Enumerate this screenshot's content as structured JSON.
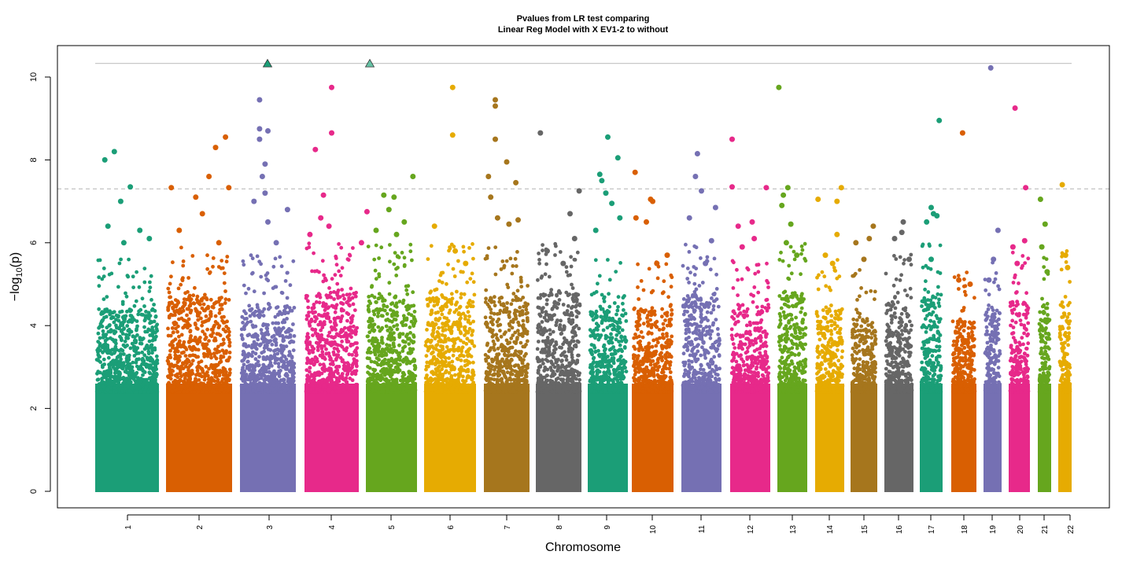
{
  "chart_data": {
    "type": "scatter",
    "title_line1": "Pvalues from LR test comparing",
    "title_line2": "Linear Reg Model with X EV1-2 to without",
    "xlabel": "Chromosome",
    "ylabel_prefix": "−log",
    "ylabel_sub": "10",
    "ylabel_suffix": "(p)",
    "ylim": [
      0,
      10.6
    ],
    "yticks": [
      "0",
      "2",
      "4",
      "6",
      "8",
      "10"
    ],
    "significance_threshold": 7.3,
    "max_line": 10.33,
    "palette": [
      "#1b9e77",
      "#d95f02",
      "#7570b3",
      "#e7298a",
      "#66a61e",
      "#e6ab02",
      "#a6761d",
      "#666666"
    ],
    "chromosomes": [
      {
        "label": "1",
        "color": "#1b9e77",
        "band_top": 4.4,
        "peaks": [
          [
            0.15,
            8.0
          ],
          [
            0.3,
            8.2
          ],
          [
            0.55,
            7.35
          ],
          [
            0.4,
            7.0
          ],
          [
            0.2,
            6.4
          ],
          [
            0.7,
            6.3
          ],
          [
            0.85,
            6.1
          ],
          [
            0.45,
            6.0
          ]
        ]
      },
      {
        "label": "2",
        "color": "#d95f02",
        "band_top": 4.7,
        "peaks": [
          [
            0.08,
            7.33
          ],
          [
            0.75,
            8.3
          ],
          [
            0.9,
            8.55
          ],
          [
            0.65,
            7.6
          ],
          [
            0.45,
            7.1
          ],
          [
            0.95,
            7.33
          ],
          [
            0.55,
            6.7
          ],
          [
            0.2,
            6.3
          ],
          [
            0.8,
            6.0
          ]
        ]
      },
      {
        "label": "3",
        "color": "#7570b3",
        "band_top": 4.5,
        "peaks": [
          [
            0.35,
            9.45
          ],
          [
            0.35,
            8.75
          ],
          [
            0.35,
            8.5
          ],
          [
            0.5,
            8.7
          ],
          [
            0.45,
            7.9
          ],
          [
            0.4,
            7.6
          ],
          [
            0.45,
            7.2
          ],
          [
            0.25,
            7.0
          ],
          [
            0.85,
            6.8
          ],
          [
            0.5,
            6.5
          ],
          [
            0.65,
            6.0
          ]
        ]
      },
      {
        "label": "4",
        "color": "#e7298a",
        "band_top": 4.8,
        "peaks": [
          [
            0.5,
            9.75
          ],
          [
            0.5,
            8.65
          ],
          [
            0.2,
            8.25
          ],
          [
            0.35,
            7.15
          ],
          [
            0.1,
            6.2
          ],
          [
            0.3,
            6.6
          ],
          [
            0.45,
            6.4
          ],
          [
            1.15,
            6.75
          ],
          [
            1.05,
            6.0
          ]
        ]
      },
      {
        "label": "5",
        "color": "#66a61e",
        "band_top": 4.8,
        "peaks": [
          [
            0.92,
            7.6
          ],
          [
            0.55,
            7.1
          ],
          [
            0.35,
            7.15
          ],
          [
            0.45,
            6.8
          ],
          [
            0.75,
            6.5
          ],
          [
            0.2,
            6.3
          ],
          [
            0.6,
            6.2
          ]
        ]
      },
      {
        "label": "6",
        "color": "#e6ab02",
        "band_top": 4.8,
        "peaks": [
          [
            0.55,
            9.75
          ],
          [
            0.55,
            8.6
          ],
          [
            0.2,
            6.4
          ],
          [
            0.6,
            5.8
          ],
          [
            0.8,
            5.5
          ]
        ]
      },
      {
        "label": "7",
        "color": "#a6761d",
        "band_top": 4.7,
        "peaks": [
          [
            0.25,
            9.45
          ],
          [
            0.25,
            9.3
          ],
          [
            0.25,
            8.5
          ],
          [
            0.5,
            7.95
          ],
          [
            0.7,
            7.45
          ],
          [
            0.1,
            7.6
          ],
          [
            0.15,
            7.1
          ],
          [
            0.3,
            6.6
          ],
          [
            0.55,
            6.45
          ],
          [
            0.75,
            6.55
          ]
        ]
      },
      {
        "label": "8",
        "color": "#666666",
        "band_top": 4.8,
        "peaks": [
          [
            0.1,
            8.65
          ],
          [
            0.95,
            7.25
          ],
          [
            0.75,
            6.7
          ],
          [
            0.85,
            6.1
          ],
          [
            0.25,
            5.8
          ],
          [
            0.6,
            5.5
          ]
        ]
      },
      {
        "label": "9",
        "color": "#1b9e77",
        "band_top": 4.4,
        "peaks": [
          [
            0.5,
            8.55
          ],
          [
            0.75,
            8.05
          ],
          [
            0.3,
            7.65
          ],
          [
            0.35,
            7.5
          ],
          [
            0.45,
            7.2
          ],
          [
            0.6,
            6.95
          ],
          [
            0.2,
            6.3
          ],
          [
            0.8,
            6.6
          ]
        ]
      },
      {
        "label": "10",
        "color": "#d95f02",
        "band_top": 4.4,
        "peaks": [
          [
            0.08,
            7.7
          ],
          [
            0.45,
            7.05
          ],
          [
            0.5,
            7.0
          ],
          [
            0.35,
            6.5
          ],
          [
            0.1,
            6.6
          ],
          [
            0.85,
            5.7
          ],
          [
            0.6,
            5.5
          ]
        ]
      },
      {
        "label": "11",
        "color": "#7570b3",
        "band_top": 4.8,
        "peaks": [
          [
            0.4,
            8.15
          ],
          [
            0.35,
            7.6
          ],
          [
            0.5,
            7.25
          ],
          [
            0.85,
            6.85
          ],
          [
            0.2,
            6.6
          ],
          [
            0.75,
            6.05
          ],
          [
            0.6,
            5.5
          ]
        ]
      },
      {
        "label": "12",
        "color": "#e7298a",
        "band_top": 4.5,
        "peaks": [
          [
            0.05,
            8.5
          ],
          [
            0.05,
            7.35
          ],
          [
            0.9,
            7.33
          ],
          [
            0.2,
            6.4
          ],
          [
            0.55,
            6.5
          ],
          [
            0.6,
            6.1
          ],
          [
            0.3,
            5.9
          ]
        ]
      },
      {
        "label": "13",
        "color": "#66a61e",
        "band_top": 4.8,
        "peaks": [
          [
            0.05,
            9.75
          ],
          [
            0.2,
            7.15
          ],
          [
            0.35,
            7.33
          ],
          [
            0.15,
            6.9
          ],
          [
            0.45,
            6.45
          ],
          [
            0.3,
            6.0
          ],
          [
            0.65,
            5.7
          ]
        ]
      },
      {
        "label": "14",
        "color": "#e6ab02",
        "band_top": 4.4,
        "peaks": [
          [
            0.1,
            7.05
          ],
          [
            0.75,
            7.0
          ],
          [
            0.9,
            7.33
          ],
          [
            0.75,
            6.2
          ],
          [
            0.35,
            5.7
          ],
          [
            0.6,
            5.5
          ]
        ]
      },
      {
        "label": "15",
        "color": "#a6761d",
        "band_top": 4.2,
        "peaks": [
          [
            0.2,
            6.0
          ],
          [
            0.7,
            6.1
          ],
          [
            0.85,
            6.4
          ],
          [
            0.5,
            5.6
          ]
        ]
      },
      {
        "label": "16",
        "color": "#666666",
        "band_top": 4.6,
        "peaks": [
          [
            0.65,
            6.5
          ],
          [
            0.6,
            6.25
          ],
          [
            0.35,
            6.1
          ],
          [
            0.85,
            5.6
          ]
        ]
      },
      {
        "label": "17",
        "color": "#1b9e77",
        "band_top": 4.8,
        "peaks": [
          [
            0.85,
            8.95
          ],
          [
            0.5,
            6.85
          ],
          [
            0.75,
            6.65
          ],
          [
            0.3,
            6.5
          ],
          [
            0.6,
            6.7
          ],
          [
            0.5,
            5.6
          ]
        ]
      },
      {
        "label": "18",
        "color": "#d95f02",
        "band_top": 4.2,
        "peaks": [
          [
            0.45,
            8.65
          ],
          [
            0.3,
            5.1
          ],
          [
            0.75,
            5.0
          ]
        ]
      },
      {
        "label": "19",
        "color": "#7570b3",
        "band_top": 4.4,
        "peaks": [
          [
            0.4,
            10.22
          ],
          [
            0.8,
            6.3
          ],
          [
            0.55,
            5.6
          ],
          [
            0.3,
            5.1
          ]
        ]
      },
      {
        "label": "20",
        "color": "#e7298a",
        "band_top": 4.6,
        "peaks": [
          [
            0.3,
            9.25
          ],
          [
            0.8,
            7.33
          ],
          [
            0.75,
            6.05
          ],
          [
            0.2,
            5.9
          ],
          [
            0.4,
            5.5
          ]
        ]
      },
      {
        "label": "21",
        "color": "#66a61e",
        "band_top": 4.5,
        "peaks": [
          [
            0.2,
            7.05
          ],
          [
            0.55,
            6.45
          ],
          [
            0.3,
            5.9
          ],
          [
            0.7,
            5.3
          ]
        ]
      },
      {
        "label": "22",
        "color": "#e6ab02",
        "band_top": 4.6,
        "peaks": [
          [
            0.3,
            7.4
          ],
          [
            0.55,
            5.7
          ],
          [
            0.7,
            5.4
          ]
        ]
      }
    ],
    "capped_points": [
      {
        "chromosome": "3",
        "value": 10.33,
        "color": "#1b9e77"
      },
      {
        "chromosome": "5",
        "value": 10.33,
        "color": "#66c2a5"
      }
    ]
  }
}
